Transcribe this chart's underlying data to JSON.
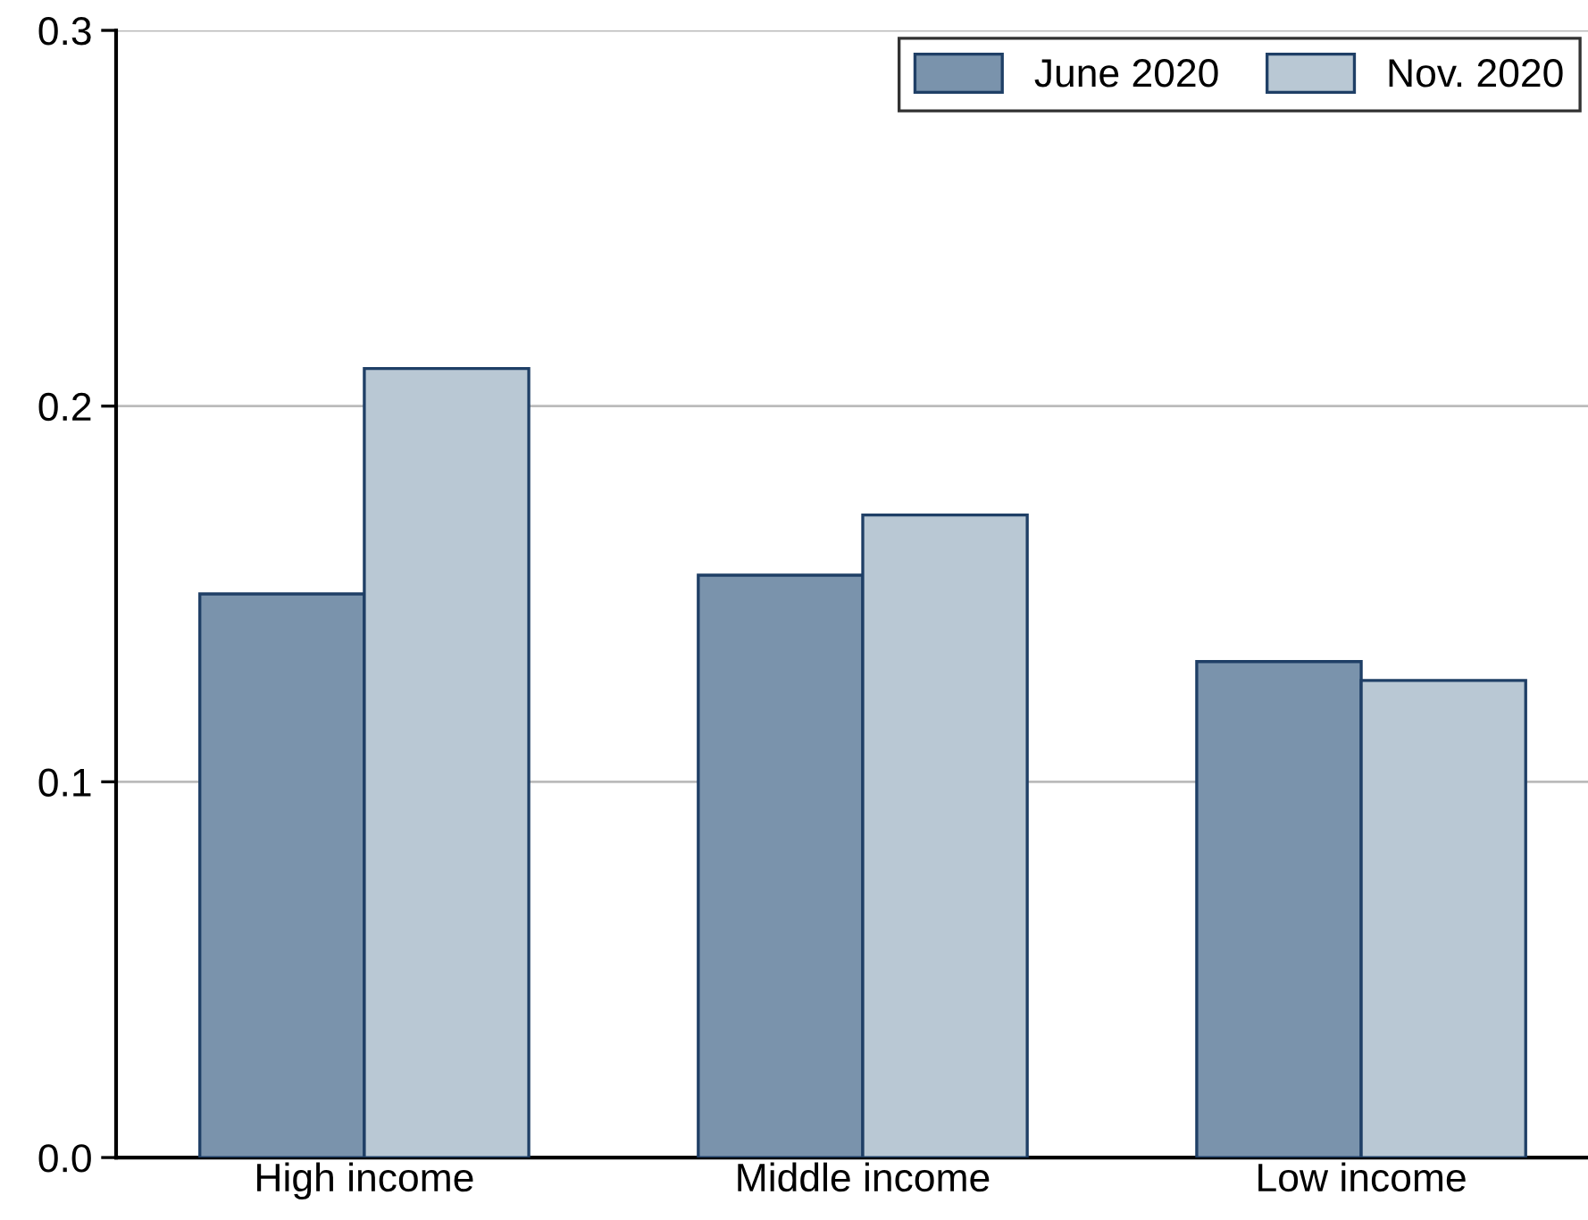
{
  "chart_data": {
    "type": "bar",
    "categories": [
      "High income",
      "Middle income",
      "Low income"
    ],
    "series": [
      {
        "name": "June 2020",
        "color": "#7a93ac",
        "values": [
          0.15,
          0.155,
          0.132
        ]
      },
      {
        "name": "Nov. 2020",
        "color": "#b9c8d4",
        "values": [
          0.21,
          0.171,
          0.127
        ]
      }
    ],
    "ylim": [
      0,
      0.3
    ],
    "yticks": [
      {
        "value": 0,
        "label": "0.0"
      },
      0.1,
      0.2,
      0.3
    ],
    "grid": "y",
    "legend": "top right"
  }
}
